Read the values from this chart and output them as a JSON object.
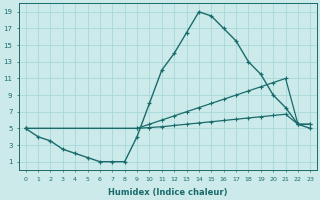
{
  "xlabel": "Humidex (Indice chaleur)",
  "background_color": "#cceaea",
  "grid_color": "#a8d8d8",
  "line_color": "#1a6b6b",
  "xlim": [
    -0.5,
    23.5
  ],
  "ylim": [
    0,
    20
  ],
  "xticks": [
    0,
    1,
    2,
    3,
    4,
    5,
    6,
    7,
    8,
    9,
    10,
    11,
    12,
    13,
    14,
    15,
    16,
    17,
    18,
    19,
    20,
    21,
    22,
    23
  ],
  "yticks": [
    1,
    3,
    5,
    7,
    9,
    11,
    13,
    15,
    17,
    19
  ],
  "line1_x": [
    0,
    1,
    2,
    3,
    4,
    5,
    6,
    7,
    8,
    9,
    10,
    11,
    12,
    13,
    14,
    15,
    16,
    17,
    18,
    19,
    20,
    21,
    22,
    23
  ],
  "line1_y": [
    5,
    4,
    3.5,
    2.5,
    2,
    1.5,
    1,
    1,
    1,
    4,
    8,
    12,
    14,
    16.5,
    19,
    18.5,
    17,
    15.5,
    13,
    11.5,
    9,
    7.5,
    5.5,
    5
  ],
  "line2_x": [
    0,
    9,
    10,
    11,
    12,
    13,
    14,
    15,
    16,
    17,
    18,
    19,
    20,
    21,
    22,
    23
  ],
  "line2_y": [
    5,
    5,
    5.5,
    6,
    6.5,
    7,
    7.5,
    8,
    8.5,
    9,
    9.5,
    10,
    10.5,
    11,
    5.5,
    5.5
  ],
  "line3_x": [
    0,
    9,
    10,
    11,
    12,
    13,
    14,
    15,
    16,
    17,
    18,
    19,
    20,
    21,
    22,
    23
  ],
  "line3_y": [
    5,
    5,
    5.1,
    5.2,
    5.35,
    5.5,
    5.65,
    5.8,
    5.95,
    6.1,
    6.25,
    6.4,
    6.55,
    6.7,
    5.5,
    5.5
  ]
}
